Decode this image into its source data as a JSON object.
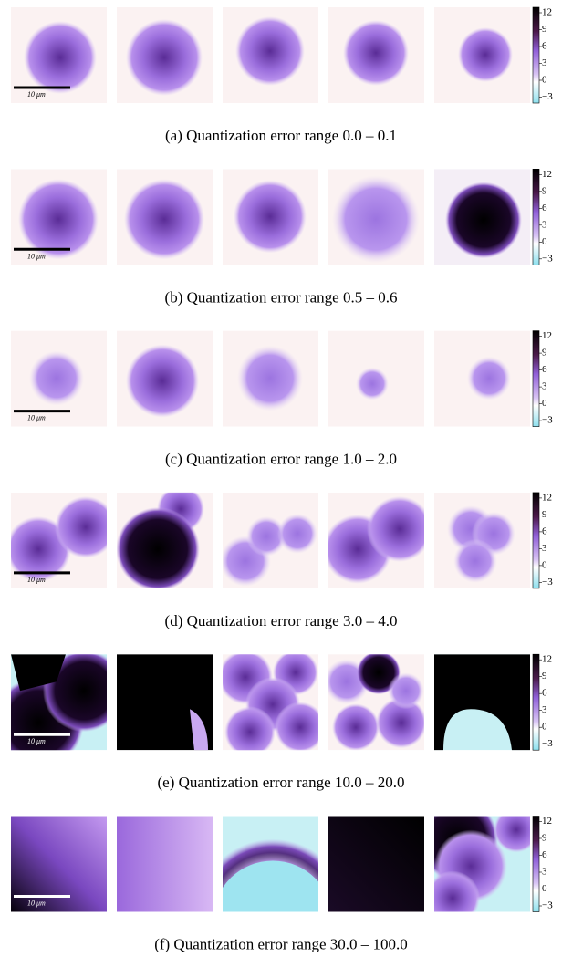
{
  "scale_bar_label": "10 μm",
  "colorbar_ticks": [
    "12",
    "9",
    "6",
    "3",
    "0",
    "−3"
  ],
  "rows": [
    {
      "caption": "(a) Quantization error range 0.0 – 0.1"
    },
    {
      "caption": "(b) Quantization error range 0.5 – 0.6"
    },
    {
      "caption": "(c) Quantization error range 1.0 – 2.0"
    },
    {
      "caption": "(d) Quantization error range 3.0 – 4.0"
    },
    {
      "caption": "(e) Quantization error range 10.0 – 20.0"
    },
    {
      "caption": "(f) Quantization error range 30.0 – 100.0"
    }
  ]
}
